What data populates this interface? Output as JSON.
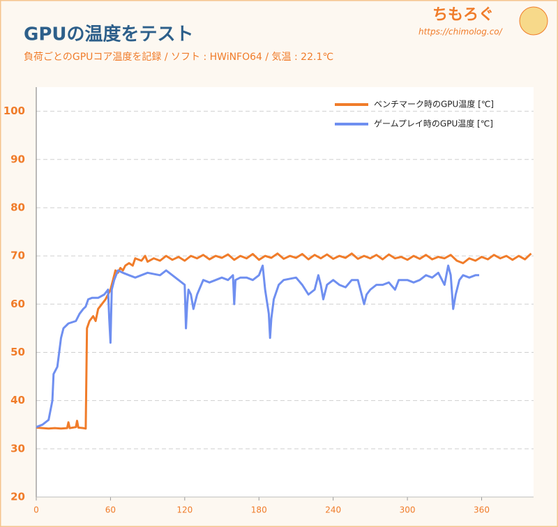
{
  "chart_data": {
    "type": "line",
    "title": "GPUの温度をテスト",
    "subtitle": "負荷ごとのGPUコア温度を記録 / ソフト : HWiNFO64 / 気温 : 22.1℃",
    "logo": "ちもろぐ",
    "logo_url": "https://chimolog.co/",
    "xlim": [
      0,
      402
    ],
    "xticks": [
      0,
      60,
      120,
      180,
      240,
      300,
      360
    ],
    "ylim": [
      20,
      105
    ],
    "yticks": [
      20,
      30,
      40,
      50,
      60,
      70,
      80,
      90,
      100
    ],
    "grid": true,
    "legend": "top-right",
    "series": [
      {
        "name": "ベンチマーク時のGPU温度 [℃]",
        "color": "#f07c2a",
        "x": [
          0,
          5,
          10,
          15,
          20,
          25,
          26,
          27,
          32,
          33,
          34,
          38,
          40,
          41,
          43,
          46,
          48,
          50,
          53,
          56,
          58,
          60,
          62,
          64,
          66,
          68,
          70,
          72,
          75,
          78,
          80,
          85,
          88,
          90,
          95,
          100,
          105,
          110,
          115,
          120,
          125,
          130,
          135,
          140,
          145,
          150,
          155,
          160,
          165,
          170,
          175,
          180,
          185,
          190,
          195,
          200,
          205,
          210,
          215,
          220,
          225,
          230,
          235,
          240,
          245,
          250,
          255,
          260,
          265,
          270,
          275,
          280,
          285,
          290,
          295,
          300,
          305,
          310,
          315,
          320,
          325,
          330,
          335,
          340,
          345,
          350,
          355,
          360,
          365,
          370,
          375,
          380,
          385,
          390,
          395,
          400
        ],
        "values": [
          34.4,
          34.3,
          34.2,
          34.3,
          34.2,
          34.3,
          35.5,
          34.3,
          34.5,
          35.8,
          34.4,
          34.3,
          34.2,
          55,
          56.5,
          57.5,
          56.5,
          59,
          60,
          61,
          62,
          63,
          65,
          67,
          66.5,
          67.5,
          67,
          68,
          68.5,
          68,
          69.5,
          69,
          70,
          68.8,
          69.5,
          69,
          70,
          69.2,
          69.8,
          69,
          70,
          69.5,
          70.2,
          69.3,
          70,
          69.6,
          70.3,
          69.2,
          70,
          69.5,
          70.4,
          69.2,
          70,
          69.6,
          70.5,
          69.4,
          70,
          69.6,
          70.4,
          69.3,
          70.2,
          69.5,
          70.3,
          69.4,
          70,
          69.6,
          70.5,
          69.4,
          70,
          69.5,
          70.2,
          69.3,
          70.3,
          69.5,
          69.8,
          69.2,
          70,
          69.4,
          70.2,
          69.3,
          69.8,
          69.5,
          70.2,
          69,
          68.5,
          69.5,
          69,
          69.8,
          69.3,
          70.2,
          69.5,
          70,
          69.2,
          70,
          69.3,
          70.5
        ]
      },
      {
        "name": "ゲームプレイ時のGPU温度 [℃]",
        "color": "#6f8ff0",
        "x": [
          0,
          5,
          10,
          13,
          14,
          17,
          20,
          22,
          26,
          32,
          35,
          38,
          40,
          42,
          45,
          50,
          55,
          58,
          59,
          60,
          61,
          63,
          66,
          70,
          75,
          80,
          90,
          100,
          105,
          110,
          115,
          120,
          121,
          122,
          123,
          125,
          127,
          130,
          135,
          140,
          145,
          150,
          155,
          159,
          160,
          161,
          165,
          170,
          175,
          180,
          183,
          185,
          188,
          189,
          190,
          192,
          196,
          200,
          210,
          215,
          220,
          225,
          228,
          230,
          232,
          235,
          240,
          245,
          250,
          255,
          260,
          263,
          265,
          267,
          270,
          275,
          280,
          285,
          290,
          293,
          300,
          305,
          310,
          315,
          320,
          325,
          330,
          333,
          335,
          337,
          339,
          342,
          345,
          350,
          355,
          358
        ],
        "values": [
          34.5,
          35,
          36,
          40,
          45.5,
          47,
          53,
          55,
          56,
          56.5,
          58,
          59,
          59.5,
          61,
          61.3,
          61.3,
          62,
          63,
          57,
          52,
          63,
          65,
          67,
          66.5,
          66,
          65.5,
          66.5,
          66,
          67,
          66,
          65,
          64,
          55,
          60,
          63,
          62,
          59,
          62,
          65,
          64.5,
          65,
          65.5,
          65,
          66,
          60,
          65,
          65.5,
          65.5,
          65,
          66,
          68,
          63,
          58,
          53,
          57,
          61,
          64,
          65,
          65.5,
          64,
          62,
          63,
          66,
          64,
          61,
          64,
          65,
          64,
          63.5,
          65,
          65,
          62,
          60,
          62,
          63,
          64,
          64,
          64.5,
          63,
          65,
          65,
          64.5,
          65,
          66,
          65.5,
          66.5,
          64,
          68,
          66,
          59,
          62,
          65,
          66,
          65.5,
          66,
          66
        ]
      }
    ]
  }
}
